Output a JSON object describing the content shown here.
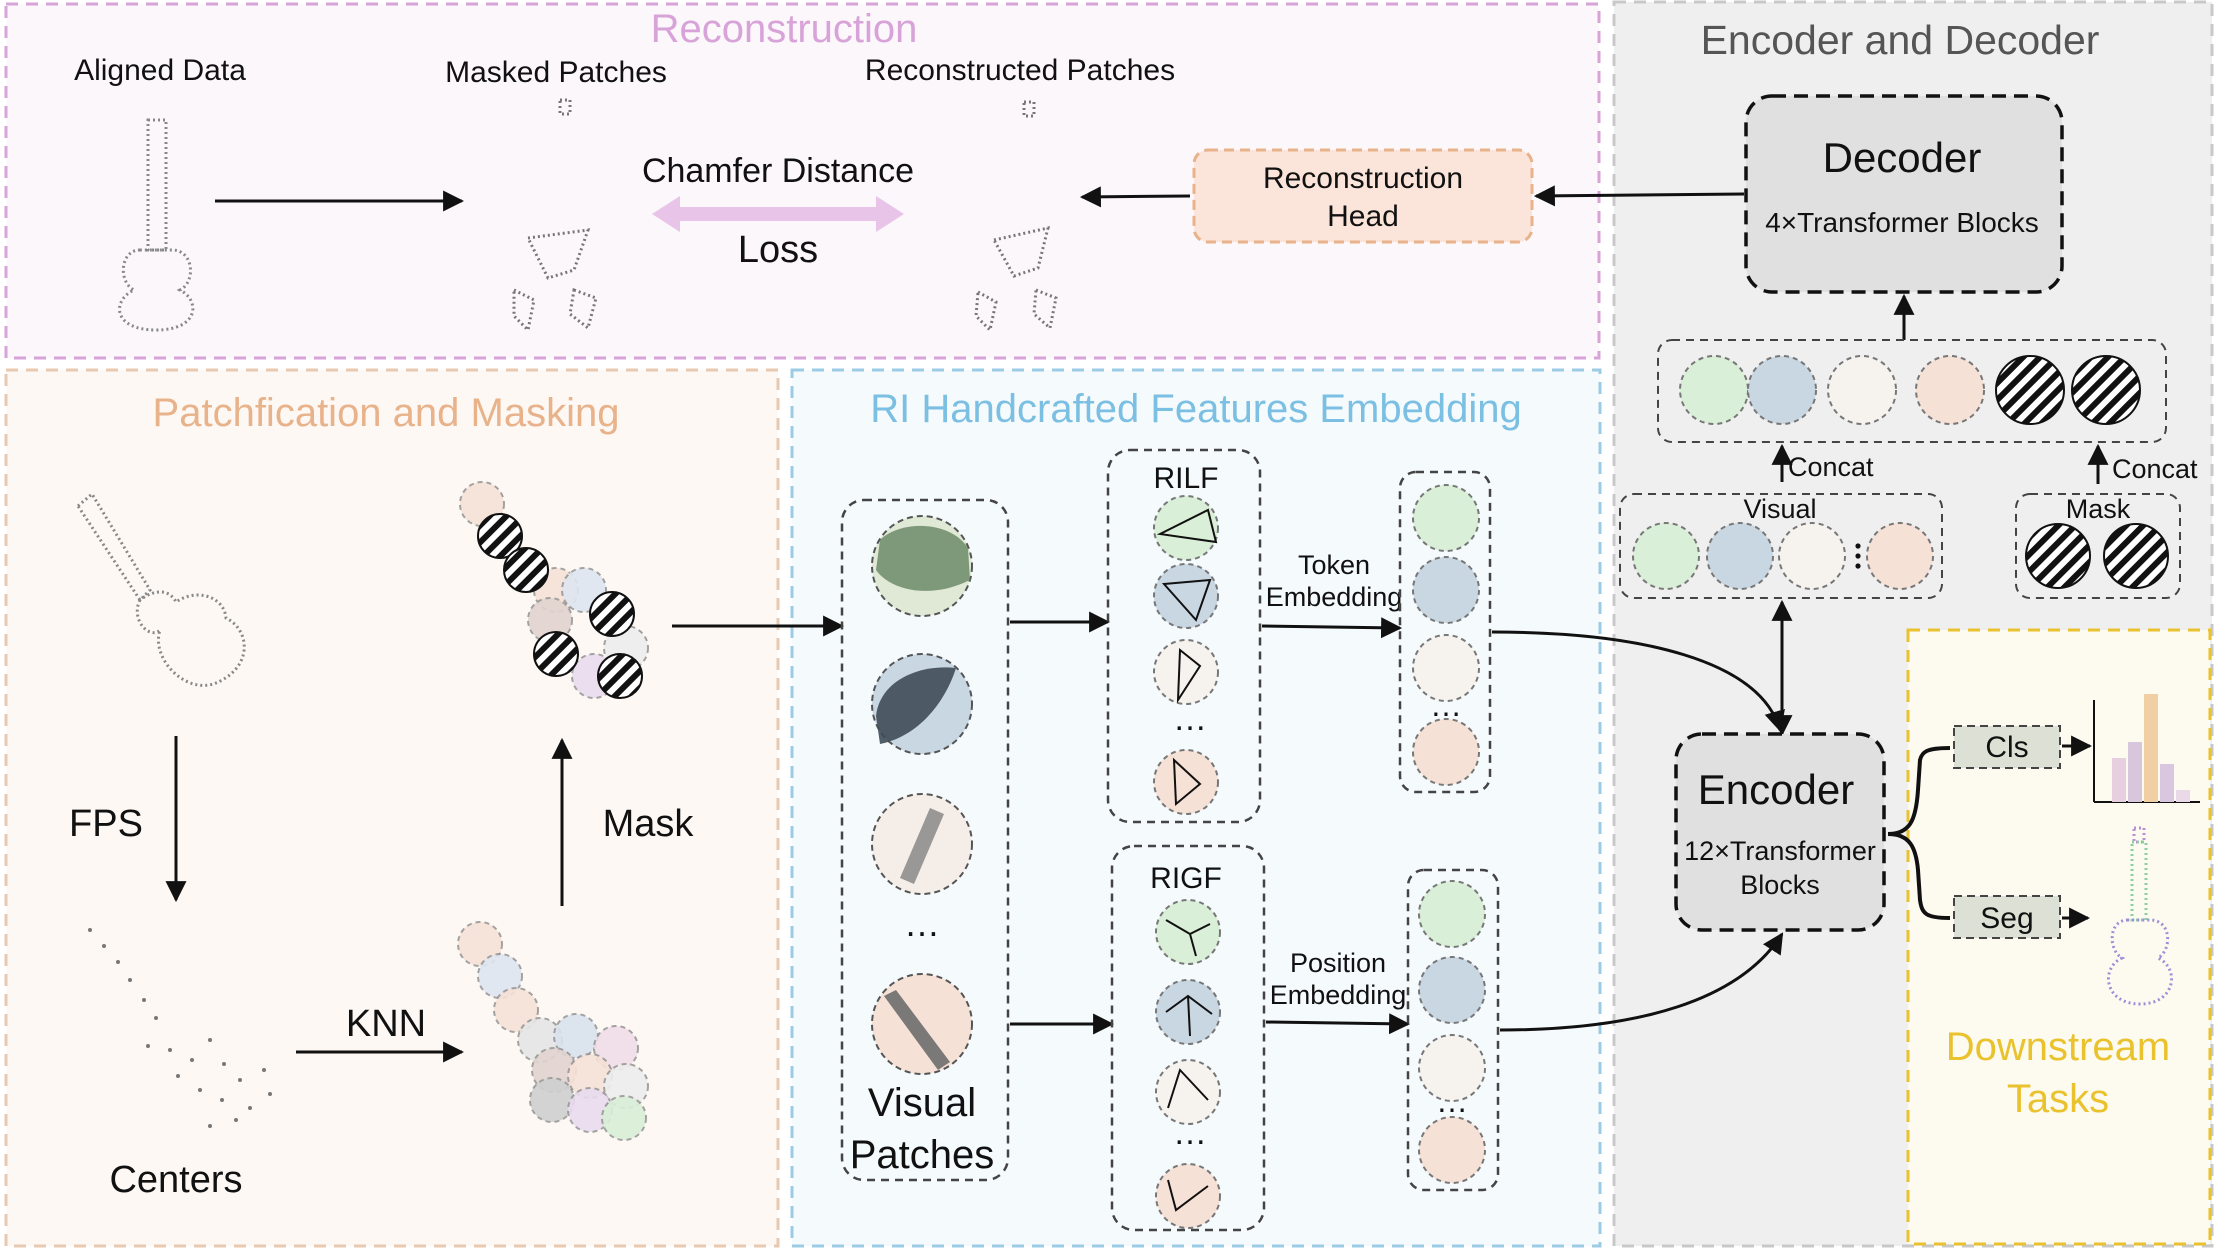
{
  "colors": {
    "reconstruction": "#d8a3d8",
    "patchification": "#e8b28a",
    "handcrafted": "#7bbfe3",
    "encoder_decoder_text": "#555555",
    "downstream": "#e9c22e",
    "green_token": "#d9efd7",
    "blue_token": "#c9d7e3",
    "white_token": "#f6f3ef",
    "peach_token": "#f6e1d7",
    "recon_head_fill": "#fbe4da",
    "loss_arrow": "#e8c4e8"
  },
  "reconstruction": {
    "title": "Reconstruction",
    "aligned_data": "Aligned Data",
    "masked_patches": "Masked Patches",
    "reconstructed_patches": "Reconstructed Patches",
    "chamfer": "Chamfer Distance",
    "loss": "Loss",
    "recon_head_line1": "Reconstruction",
    "recon_head_line2": "Head"
  },
  "encoder_decoder": {
    "title": "Encoder and Decoder",
    "decoder_title": "Decoder",
    "decoder_sub": "4×Transformer Blocks",
    "concat_left": "Concat",
    "concat_right": "Concat",
    "visual": "Visual",
    "mask": "Mask",
    "encoder_title": "Encoder",
    "encoder_sub1": "12×Transformer",
    "encoder_sub2": "Blocks"
  },
  "patchification": {
    "title": "Patchfication and Masking",
    "fps": "FPS",
    "mask": "Mask",
    "knn": "KNN",
    "centers": "Centers"
  },
  "handcrafted": {
    "title": "RI Handcrafted Features Embedding",
    "rilf": "RILF",
    "rigf": "RIGF",
    "token_line1": "Token",
    "token_line2": "Embedding",
    "position_line1": "Position",
    "position_line2": "Embedding",
    "visual_patches_line1": "Visual",
    "visual_patches_line2": "Patches",
    "ellipsis": "…"
  },
  "downstream": {
    "title_line1": "Downstream",
    "title_line2": "Tasks",
    "cls": "Cls",
    "seg": "Seg"
  }
}
